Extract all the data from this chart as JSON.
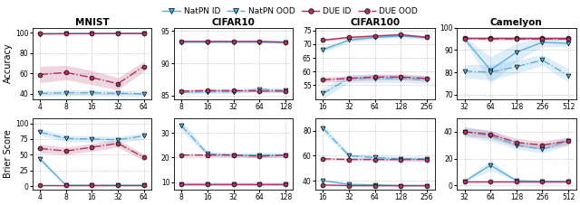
{
  "datasets": [
    "MNIST",
    "CIFAR10",
    "CIFAR100",
    "Camelyon"
  ],
  "x_ticks": {
    "MNIST": [
      4,
      8,
      16,
      32,
      64
    ],
    "CIFAR10": [
      8,
      16,
      32,
      64,
      128
    ],
    "CIFAR100": [
      16,
      32,
      64,
      128,
      256
    ],
    "Camelyon": [
      32,
      64,
      128,
      256,
      512
    ]
  },
  "x_pos": {
    "MNIST": [
      0,
      1,
      2,
      3,
      4
    ],
    "CIFAR10": [
      0,
      1,
      2,
      3,
      4
    ],
    "CIFAR100": [
      0,
      1,
      2,
      3,
      4
    ],
    "Camelyon": [
      0,
      1,
      2,
      3,
      4
    ]
  },
  "accuracy": {
    "MNIST": {
      "natpn_id_mean": [
        99.0,
        99.2,
        99.4,
        99.5,
        99.6
      ],
      "natpn_id_std": [
        0.3,
        0.2,
        0.2,
        0.2,
        0.1
      ],
      "natpn_ood_mean": [
        40.5,
        41.0,
        41.0,
        40.5,
        40.0
      ],
      "natpn_ood_std": [
        3.0,
        3.0,
        3.0,
        3.0,
        3.0
      ],
      "due_id_mean": [
        99.1,
        99.2,
        99.3,
        99.4,
        99.5
      ],
      "due_id_std": [
        0.2,
        0.2,
        0.2,
        0.1,
        0.1
      ],
      "due_ood_mean": [
        59.0,
        61.0,
        56.0,
        50.0,
        67.0
      ],
      "due_ood_std": [
        8.0,
        7.0,
        7.0,
        6.0,
        5.0
      ],
      "ylim": [
        35,
        105
      ],
      "yticks": [
        40,
        60,
        80,
        100
      ]
    },
    "CIFAR10": {
      "natpn_id_mean": [
        93.3,
        93.3,
        93.3,
        93.3,
        93.2
      ],
      "natpn_id_std": [
        0.15,
        0.15,
        0.15,
        0.15,
        0.15
      ],
      "natpn_ood_mean": [
        85.5,
        85.6,
        85.6,
        86.0,
        85.8
      ],
      "natpn_ood_std": [
        0.3,
        0.3,
        0.3,
        0.3,
        0.3
      ],
      "due_id_mean": [
        93.4,
        93.4,
        93.4,
        93.4,
        93.3
      ],
      "due_id_std": [
        0.15,
        0.15,
        0.15,
        0.15,
        0.15
      ],
      "due_ood_mean": [
        85.7,
        85.8,
        85.8,
        85.7,
        85.7
      ],
      "due_ood_std": [
        0.2,
        0.2,
        0.2,
        0.2,
        0.2
      ],
      "ylim": [
        84.5,
        95.5
      ],
      "yticks": [
        85,
        90,
        95
      ]
    },
    "CIFAR100": {
      "natpn_id_mean": [
        68.0,
        71.5,
        72.5,
        73.0,
        72.5
      ],
      "natpn_id_std": [
        1.0,
        0.8,
        0.7,
        0.7,
        0.7
      ],
      "natpn_ood_mean": [
        52.0,
        57.5,
        57.5,
        57.5,
        57.0
      ],
      "natpn_ood_std": [
        2.0,
        1.5,
        1.5,
        1.5,
        1.5
      ],
      "due_id_mean": [
        71.5,
        72.5,
        73.0,
        73.5,
        72.5
      ],
      "due_id_std": [
        0.5,
        0.5,
        0.5,
        0.5,
        0.5
      ],
      "due_ood_mean": [
        57.0,
        57.5,
        58.0,
        58.0,
        57.5
      ],
      "due_ood_std": [
        1.0,
        1.0,
        1.0,
        1.0,
        1.0
      ],
      "ylim": [
        50,
        76
      ],
      "yticks": [
        55,
        60,
        65,
        70,
        75
      ]
    },
    "Camelyon": {
      "natpn_id_mean": [
        95.0,
        81.0,
        89.0,
        93.5,
        93.0
      ],
      "natpn_id_std": [
        1.0,
        6.0,
        4.0,
        2.0,
        1.5
      ],
      "natpn_ood_mean": [
        80.5,
        80.0,
        82.5,
        85.5,
        78.5
      ],
      "natpn_ood_std": [
        3.0,
        3.5,
        3.0,
        2.5,
        3.0
      ],
      "due_id_mean": [
        95.5,
        95.5,
        95.5,
        95.5,
        95.5
      ],
      "due_id_std": [
        0.4,
        0.4,
        0.4,
        0.4,
        0.4
      ],
      "due_ood_mean": [
        95.2,
        95.0,
        95.0,
        95.0,
        95.0
      ],
      "due_ood_std": [
        0.5,
        0.5,
        0.5,
        0.5,
        0.5
      ],
      "ylim": [
        68,
        100
      ],
      "yticks": [
        70,
        80,
        90,
        100
      ]
    }
  },
  "brier": {
    "MNIST": {
      "natpn_id_mean": [
        43.0,
        1.5,
        1.5,
        1.5,
        1.5
      ],
      "natpn_id_std": [
        5.0,
        0.4,
        0.4,
        0.4,
        0.4
      ],
      "natpn_ood_mean": [
        86.0,
        76.0,
        75.0,
        74.0,
        80.0
      ],
      "natpn_ood_std": [
        5.0,
        5.0,
        5.0,
        5.0,
        5.0
      ],
      "due_id_mean": [
        1.5,
        1.5,
        1.5,
        1.5,
        1.5
      ],
      "due_id_std": [
        0.3,
        0.3,
        0.3,
        0.3,
        0.3
      ],
      "due_ood_mean": [
        60.0,
        56.0,
        62.0,
        68.0,
        46.0
      ],
      "due_ood_std": [
        7.0,
        6.0,
        6.0,
        6.0,
        5.0
      ],
      "ylim": [
        -5,
        108
      ],
      "yticks": [
        0,
        25,
        50,
        75,
        100
      ]
    },
    "CIFAR10": {
      "natpn_id_mean": [
        9.0,
        9.0,
        9.0,
        9.0,
        9.0
      ],
      "natpn_id_std": [
        0.3,
        0.3,
        0.3,
        0.3,
        0.3
      ],
      "natpn_ood_mean": [
        33.0,
        21.5,
        21.0,
        21.0,
        21.0
      ],
      "natpn_ood_std": [
        2.0,
        1.0,
        1.0,
        1.0,
        1.0
      ],
      "due_id_mean": [
        9.0,
        9.0,
        9.0,
        9.0,
        9.0
      ],
      "due_id_std": [
        0.3,
        0.3,
        0.3,
        0.3,
        0.3
      ],
      "due_ood_mean": [
        21.0,
        21.0,
        21.0,
        20.5,
        21.0
      ],
      "due_ood_std": [
        0.5,
        0.5,
        0.5,
        0.5,
        0.5
      ],
      "ylim": [
        7,
        36
      ],
      "yticks": [
        10,
        20,
        30
      ]
    },
    "CIFAR100": {
      "natpn_id_mean": [
        40.0,
        37.0,
        36.5,
        36.0,
        36.0
      ],
      "natpn_id_std": [
        1.0,
        0.8,
        0.7,
        0.7,
        0.6
      ],
      "natpn_ood_mean": [
        82.0,
        60.0,
        58.5,
        57.5,
        57.5
      ],
      "natpn_ood_std": [
        3.0,
        2.0,
        2.0,
        2.0,
        2.0
      ],
      "due_id_mean": [
        36.5,
        36.0,
        36.0,
        36.0,
        36.0
      ],
      "due_id_std": [
        0.5,
        0.5,
        0.5,
        0.5,
        0.5
      ],
      "due_ood_mean": [
        57.5,
        57.0,
        57.0,
        57.0,
        57.0
      ],
      "due_ood_std": [
        1.0,
        1.0,
        1.0,
        1.0,
        1.0
      ],
      "ylim": [
        33,
        90
      ],
      "yticks": [
        40,
        60,
        80
      ]
    },
    "Camelyon": {
      "natpn_id_mean": [
        3.0,
        15.0,
        3.5,
        3.0,
        3.0
      ],
      "natpn_id_std": [
        0.5,
        4.0,
        0.5,
        0.5,
        0.5
      ],
      "natpn_ood_mean": [
        40.0,
        37.0,
        30.0,
        27.0,
        33.0
      ],
      "natpn_ood_std": [
        4.0,
        4.0,
        3.0,
        3.0,
        3.0
      ],
      "due_id_mean": [
        3.0,
        3.0,
        3.0,
        3.0,
        3.0
      ],
      "due_id_std": [
        0.3,
        0.3,
        0.3,
        0.3,
        0.3
      ],
      "due_ood_mean": [
        40.0,
        38.0,
        32.0,
        30.0,
        33.0
      ],
      "due_ood_std": [
        3.0,
        3.0,
        3.0,
        3.0,
        3.0
      ],
      "ylim": [
        -3,
        50
      ],
      "yticks": [
        0,
        20,
        40
      ]
    }
  },
  "colors": {
    "natpn": "#5badde",
    "due": "#b03060"
  }
}
